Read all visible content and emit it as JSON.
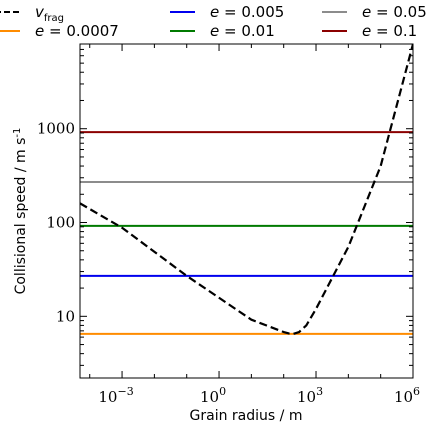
{
  "chart_data": {
    "type": "line",
    "title": "",
    "xlabel": "Grain radius / m",
    "ylabel": "Collisional speed / m s⁻¹",
    "x_scale": "log",
    "y_scale": "log",
    "xlim": [
      5e-05,
      1000000
    ],
    "ylim": [
      2.2,
      8000
    ],
    "x_ticks": [
      {
        "value": 0.001,
        "base": "10",
        "exp": "−3"
      },
      {
        "value": 1,
        "base": "10",
        "exp": "0"
      },
      {
        "value": 1000,
        "base": "10",
        "exp": "3"
      },
      {
        "value": 1000000,
        "base": "10",
        "exp": "6"
      }
    ],
    "y_ticks": [
      {
        "value": 10,
        "label": "10"
      },
      {
        "value": 100,
        "label": "100"
      },
      {
        "value": 1000,
        "label": "1000"
      }
    ],
    "legend": {
      "placement": "top, outside plot, 4 columns",
      "entries": [
        {
          "key": "v_frag",
          "main": "v",
          "sub": "frag",
          "italic": true,
          "color": "#000000",
          "dashed": true
        },
        {
          "key": "e_0.0007",
          "prefix": "e",
          "suffix": " = 0.0007",
          "color": "#ff8c00",
          "dashed": false
        },
        {
          "key": "e_0.005",
          "prefix": "e",
          "suffix": " = 0.005",
          "color": "#0000ee",
          "dashed": false
        },
        {
          "key": "e_0.01",
          "prefix": "e",
          "suffix": " = 0.01",
          "color": "#007a00",
          "dashed": false
        },
        {
          "key": "e_0.05",
          "prefix": "e",
          "suffix": " = 0.05",
          "color": "#8c8c8c",
          "dashed": false
        },
        {
          "key": "e_0.1",
          "prefix": "e",
          "suffix": " = 0.1",
          "color": "#8b0000",
          "dashed": false
        }
      ]
    },
    "series": [
      {
        "name": "vfrag",
        "color": "#000000",
        "dashed": true,
        "points": [
          [
            5e-05,
            160
          ],
          [
            0.001,
            88
          ],
          [
            0.1,
            27
          ],
          [
            10,
            9.2
          ],
          [
            100,
            6.8
          ],
          [
            150,
            6.55
          ],
          [
            200,
            6.5
          ],
          [
            300,
            6.8
          ],
          [
            500,
            8.0
          ],
          [
            1000,
            12
          ],
          [
            10000,
            55
          ],
          [
            100000,
            400
          ],
          [
            1000000,
            8000
          ]
        ]
      },
      {
        "name": "e = 0.0007",
        "color": "#ff8c00",
        "dashed": false,
        "value": 6.5
      },
      {
        "name": "e = 0.005",
        "color": "#0000ee",
        "dashed": false,
        "value": 27
      },
      {
        "name": "e = 0.01",
        "color": "#007a00",
        "dashed": false,
        "value": 92
      },
      {
        "name": "e = 0.05",
        "color": "#8c8c8c",
        "dashed": false,
        "value": 270
      },
      {
        "name": "e = 0.1",
        "color": "#8b0000",
        "dashed": false,
        "value": 920
      }
    ]
  }
}
